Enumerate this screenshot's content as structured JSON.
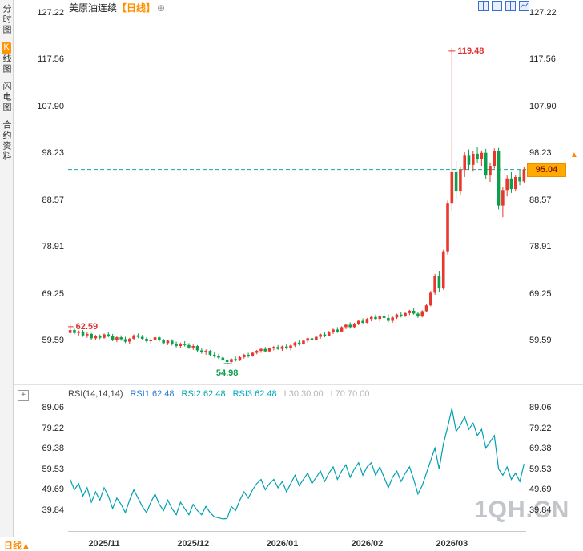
{
  "sidebar": {
    "tabs": [
      {
        "label": "分时图"
      },
      {
        "hot": "K",
        "rest": "线图"
      },
      {
        "label": "闪电图"
      },
      {
        "label": "合约资料"
      }
    ]
  },
  "header": {
    "title": "美原油连续",
    "timeframe": "【日线】",
    "add_icon": "⊕"
  },
  "toolbar": {
    "icons": [
      "split-2-vertical-icon",
      "split-2-horizontal-icon",
      "grid-4-icon",
      "mini-chart-icon"
    ]
  },
  "price_tag": {
    "value": "95.04",
    "arrow": "▲"
  },
  "rsi_header": {
    "name": "RSI(14,14,14)",
    "rsi1": "RSI1:62.48",
    "rsi2": "RSI2:62.48",
    "rsi3": "RSI3:62.48",
    "l30": "L30:30.00",
    "l70": "L70:70.00",
    "expand_icon": "+"
  },
  "bottom_bar": {
    "timeframe": "日线",
    "arrow": "▲"
  },
  "watermark": "1QH.CN",
  "chart_data": [
    {
      "type": "candlestick",
      "title": "美原油连续【日线】",
      "xlabel": "",
      "ylabel": "",
      "y_ticks": [
        127.22,
        117.56,
        107.9,
        98.23,
        88.57,
        78.91,
        69.25,
        59.59
      ],
      "ylim": [
        52.32,
        128.38
      ],
      "last_price": 95.04,
      "x_labels": [
        {
          "label": "2025/11",
          "index": 8
        },
        {
          "label": "2025/12",
          "index": 29
        },
        {
          "label": "2026/01",
          "index": 50
        },
        {
          "label": "2026/02",
          "index": 70
        },
        {
          "label": "2026/03",
          "index": 90
        }
      ],
      "annotations": [
        {
          "text": "119.48",
          "price": 119.48,
          "index": 90,
          "color": "#e03131",
          "placement": "right"
        },
        {
          "text": "62.59",
          "price": 62.59,
          "index": 0,
          "color": "#e03131",
          "placement": "right"
        },
        {
          "text": "54.98",
          "price": 54.98,
          "index": 37,
          "color": "#0f9d4f",
          "placement": "below"
        }
      ],
      "colors": {
        "up": "#e8382e",
        "down": "#0ca04e",
        "last_price_line": "#1aa79e"
      },
      "candles": [
        [
          61.3,
          62.59,
          60.9,
          61.9
        ],
        [
          61.9,
          62.2,
          61.0,
          61.3
        ],
        [
          61.3,
          61.8,
          60.7,
          61.6
        ],
        [
          61.6,
          61.9,
          60.5,
          60.8
        ],
        [
          60.8,
          61.4,
          60.3,
          61.1
        ],
        [
          61.1,
          61.3,
          59.9,
          60.2
        ],
        [
          60.2,
          60.9,
          59.8,
          60.6
        ],
        [
          60.6,
          61.0,
          60.0,
          60.3
        ],
        [
          60.3,
          61.2,
          60.1,
          61.0
        ],
        [
          61.0,
          61.5,
          60.4,
          60.7
        ],
        [
          60.7,
          61.1,
          59.6,
          59.9
        ],
        [
          59.9,
          60.6,
          59.4,
          60.4
        ],
        [
          60.4,
          60.8,
          59.7,
          60.0
        ],
        [
          60.0,
          60.5,
          59.2,
          59.5
        ],
        [
          59.5,
          60.3,
          59.1,
          60.1
        ],
        [
          60.1,
          61.0,
          59.9,
          60.8
        ],
        [
          60.8,
          61.2,
          60.2,
          60.5
        ],
        [
          60.5,
          60.9,
          59.8,
          60.1
        ],
        [
          60.1,
          60.4,
          59.3,
          59.6
        ],
        [
          59.6,
          60.2,
          59.0,
          59.9
        ],
        [
          59.9,
          60.6,
          59.6,
          60.4
        ],
        [
          60.4,
          60.7,
          59.5,
          59.8
        ],
        [
          59.8,
          60.1,
          58.9,
          59.2
        ],
        [
          59.2,
          59.9,
          58.8,
          59.7
        ],
        [
          59.7,
          60.0,
          58.7,
          59.0
        ],
        [
          59.0,
          59.5,
          58.3,
          58.6
        ],
        [
          58.6,
          59.3,
          58.2,
          59.1
        ],
        [
          59.1,
          59.6,
          58.5,
          58.8
        ],
        [
          58.8,
          59.2,
          58.0,
          58.3
        ],
        [
          58.3,
          58.9,
          57.8,
          58.6
        ],
        [
          58.6,
          58.8,
          57.4,
          57.7
        ],
        [
          57.7,
          58.2,
          57.0,
          57.3
        ],
        [
          57.3,
          57.9,
          56.8,
          57.6
        ],
        [
          57.6,
          57.8,
          56.5,
          56.8
        ],
        [
          56.8,
          57.3,
          56.2,
          56.5
        ],
        [
          56.5,
          57.0,
          55.9,
          56.2
        ],
        [
          56.2,
          56.6,
          55.4,
          55.7
        ],
        [
          55.7,
          56.0,
          54.98,
          55.3
        ],
        [
          55.3,
          56.1,
          55.0,
          55.9
        ],
        [
          55.9,
          56.4,
          55.4,
          55.6
        ],
        [
          55.6,
          56.5,
          55.5,
          56.3
        ],
        [
          56.3,
          57.0,
          56.0,
          56.8
        ],
        [
          56.8,
          57.2,
          56.2,
          56.5
        ],
        [
          56.5,
          57.4,
          56.4,
          57.2
        ],
        [
          57.2,
          57.8,
          56.9,
          57.6
        ],
        [
          57.6,
          58.2,
          57.2,
          58.0
        ],
        [
          58.0,
          58.4,
          57.3,
          57.5
        ],
        [
          57.5,
          58.3,
          57.4,
          58.1
        ],
        [
          58.1,
          58.6,
          57.7,
          58.4
        ],
        [
          58.4,
          58.8,
          57.8,
          58.0
        ],
        [
          58.0,
          58.7,
          57.6,
          58.5
        ],
        [
          58.5,
          59.1,
          57.9,
          58.2
        ],
        [
          58.2,
          58.9,
          57.7,
          58.7
        ],
        [
          58.7,
          59.5,
          58.4,
          59.3
        ],
        [
          59.3,
          59.8,
          58.7,
          59.0
        ],
        [
          59.0,
          59.9,
          58.9,
          59.7
        ],
        [
          59.7,
          60.4,
          59.3,
          60.2
        ],
        [
          60.2,
          60.6,
          59.5,
          59.8
        ],
        [
          59.8,
          60.7,
          59.7,
          60.5
        ],
        [
          60.5,
          61.2,
          60.1,
          61.0
        ],
        [
          61.0,
          61.5,
          60.4,
          60.7
        ],
        [
          60.7,
          61.7,
          60.6,
          61.5
        ],
        [
          61.5,
          62.2,
          61.1,
          62.0
        ],
        [
          62.0,
          62.5,
          61.3,
          61.6
        ],
        [
          61.6,
          62.7,
          61.5,
          62.5
        ],
        [
          62.5,
          63.2,
          62.1,
          63.0
        ],
        [
          63.0,
          63.5,
          62.2,
          62.5
        ],
        [
          62.5,
          63.4,
          62.3,
          63.2
        ],
        [
          63.2,
          64.0,
          62.9,
          63.8
        ],
        [
          63.8,
          64.3,
          63.1,
          63.4
        ],
        [
          63.4,
          64.4,
          63.3,
          64.2
        ],
        [
          64.2,
          64.9,
          63.7,
          64.6
        ],
        [
          64.6,
          65.1,
          63.9,
          64.2
        ],
        [
          64.2,
          65.0,
          63.6,
          64.8
        ],
        [
          64.8,
          65.4,
          64.1,
          64.4
        ],
        [
          64.4,
          65.2,
          63.5,
          63.8
        ],
        [
          63.8,
          64.7,
          63.4,
          64.5
        ],
        [
          64.5,
          65.3,
          64.2,
          65.1
        ],
        [
          65.1,
          65.7,
          64.5,
          64.8
        ],
        [
          64.8,
          65.6,
          64.6,
          65.4
        ],
        [
          65.4,
          66.1,
          65.0,
          65.9
        ],
        [
          65.9,
          66.4,
          65.1,
          65.3
        ],
        [
          65.3,
          65.6,
          64.4,
          64.7
        ],
        [
          64.7,
          66.0,
          64.5,
          65.8
        ],
        [
          65.8,
          67.2,
          65.6,
          67.0
        ],
        [
          67.0,
          70.0,
          66.8,
          69.6
        ],
        [
          69.6,
          73.5,
          69.2,
          73.0
        ],
        [
          73.0,
          74.0,
          69.8,
          70.5
        ],
        [
          70.5,
          78.5,
          70.2,
          78.0
        ],
        [
          78.0,
          88.6,
          77.5,
          88.0
        ],
        [
          88.0,
          119.48,
          86.5,
          94.5
        ],
        [
          94.5,
          96.8,
          89.0,
          90.5
        ],
        [
          90.5,
          95.5,
          89.8,
          95.0
        ],
        [
          95.0,
          98.6,
          93.5,
          97.9
        ],
        [
          97.9,
          99.2,
          95.0,
          96.0
        ],
        [
          96.0,
          98.9,
          94.6,
          98.3
        ],
        [
          98.3,
          99.6,
          96.5,
          97.2
        ],
        [
          97.2,
          99.0,
          95.8,
          98.5
        ],
        [
          98.5,
          99.3,
          93.0,
          93.8
        ],
        [
          93.8,
          96.5,
          92.5,
          95.8
        ],
        [
          95.8,
          99.4,
          95.2,
          98.8
        ],
        [
          98.8,
          99.5,
          86.8,
          87.6
        ],
        [
          87.6,
          91.5,
          85.2,
          90.8
        ],
        [
          90.8,
          93.8,
          89.5,
          93.2
        ],
        [
          93.2,
          94.5,
          90.2,
          91.0
        ],
        [
          91.0,
          94.0,
          90.5,
          93.5
        ],
        [
          93.5,
          95.0,
          91.8,
          92.6
        ],
        [
          92.6,
          95.5,
          92.2,
          95.04
        ]
      ]
    },
    {
      "type": "line",
      "name": "RSI(14,14,14)",
      "y_ticks": [
        89.06,
        79.22,
        69.38,
        59.53,
        49.69,
        39.84
      ],
      "ylim": [
        27.5,
        92.9
      ],
      "levels": [
        70,
        30
      ],
      "color": "#00a0b0",
      "values": [
        55,
        50,
        53,
        47,
        51,
        44,
        49,
        45,
        51,
        47,
        41,
        46,
        43,
        39,
        45,
        50,
        46,
        42,
        39,
        44,
        48,
        43,
        40,
        45,
        41,
        38,
        44,
        41,
        38,
        43,
        40,
        38,
        42,
        39,
        37,
        36.5,
        36,
        36.2,
        42,
        40,
        45,
        49,
        46,
        50,
        53,
        55,
        50,
        53,
        55,
        51,
        54,
        49,
        53,
        57,
        52,
        55,
        58,
        53,
        56,
        59,
        54,
        58,
        61,
        55,
        59,
        62,
        56,
        60,
        63,
        57,
        61,
        63,
        57,
        61,
        56,
        51,
        56,
        59,
        54,
        58,
        61,
        55,
        48,
        52,
        58,
        64,
        70,
        60,
        72,
        80,
        89,
        78,
        81,
        85,
        79,
        82,
        76,
        79,
        70,
        73,
        76,
        60,
        57,
        61,
        55,
        58,
        54,
        62.48
      ]
    }
  ]
}
